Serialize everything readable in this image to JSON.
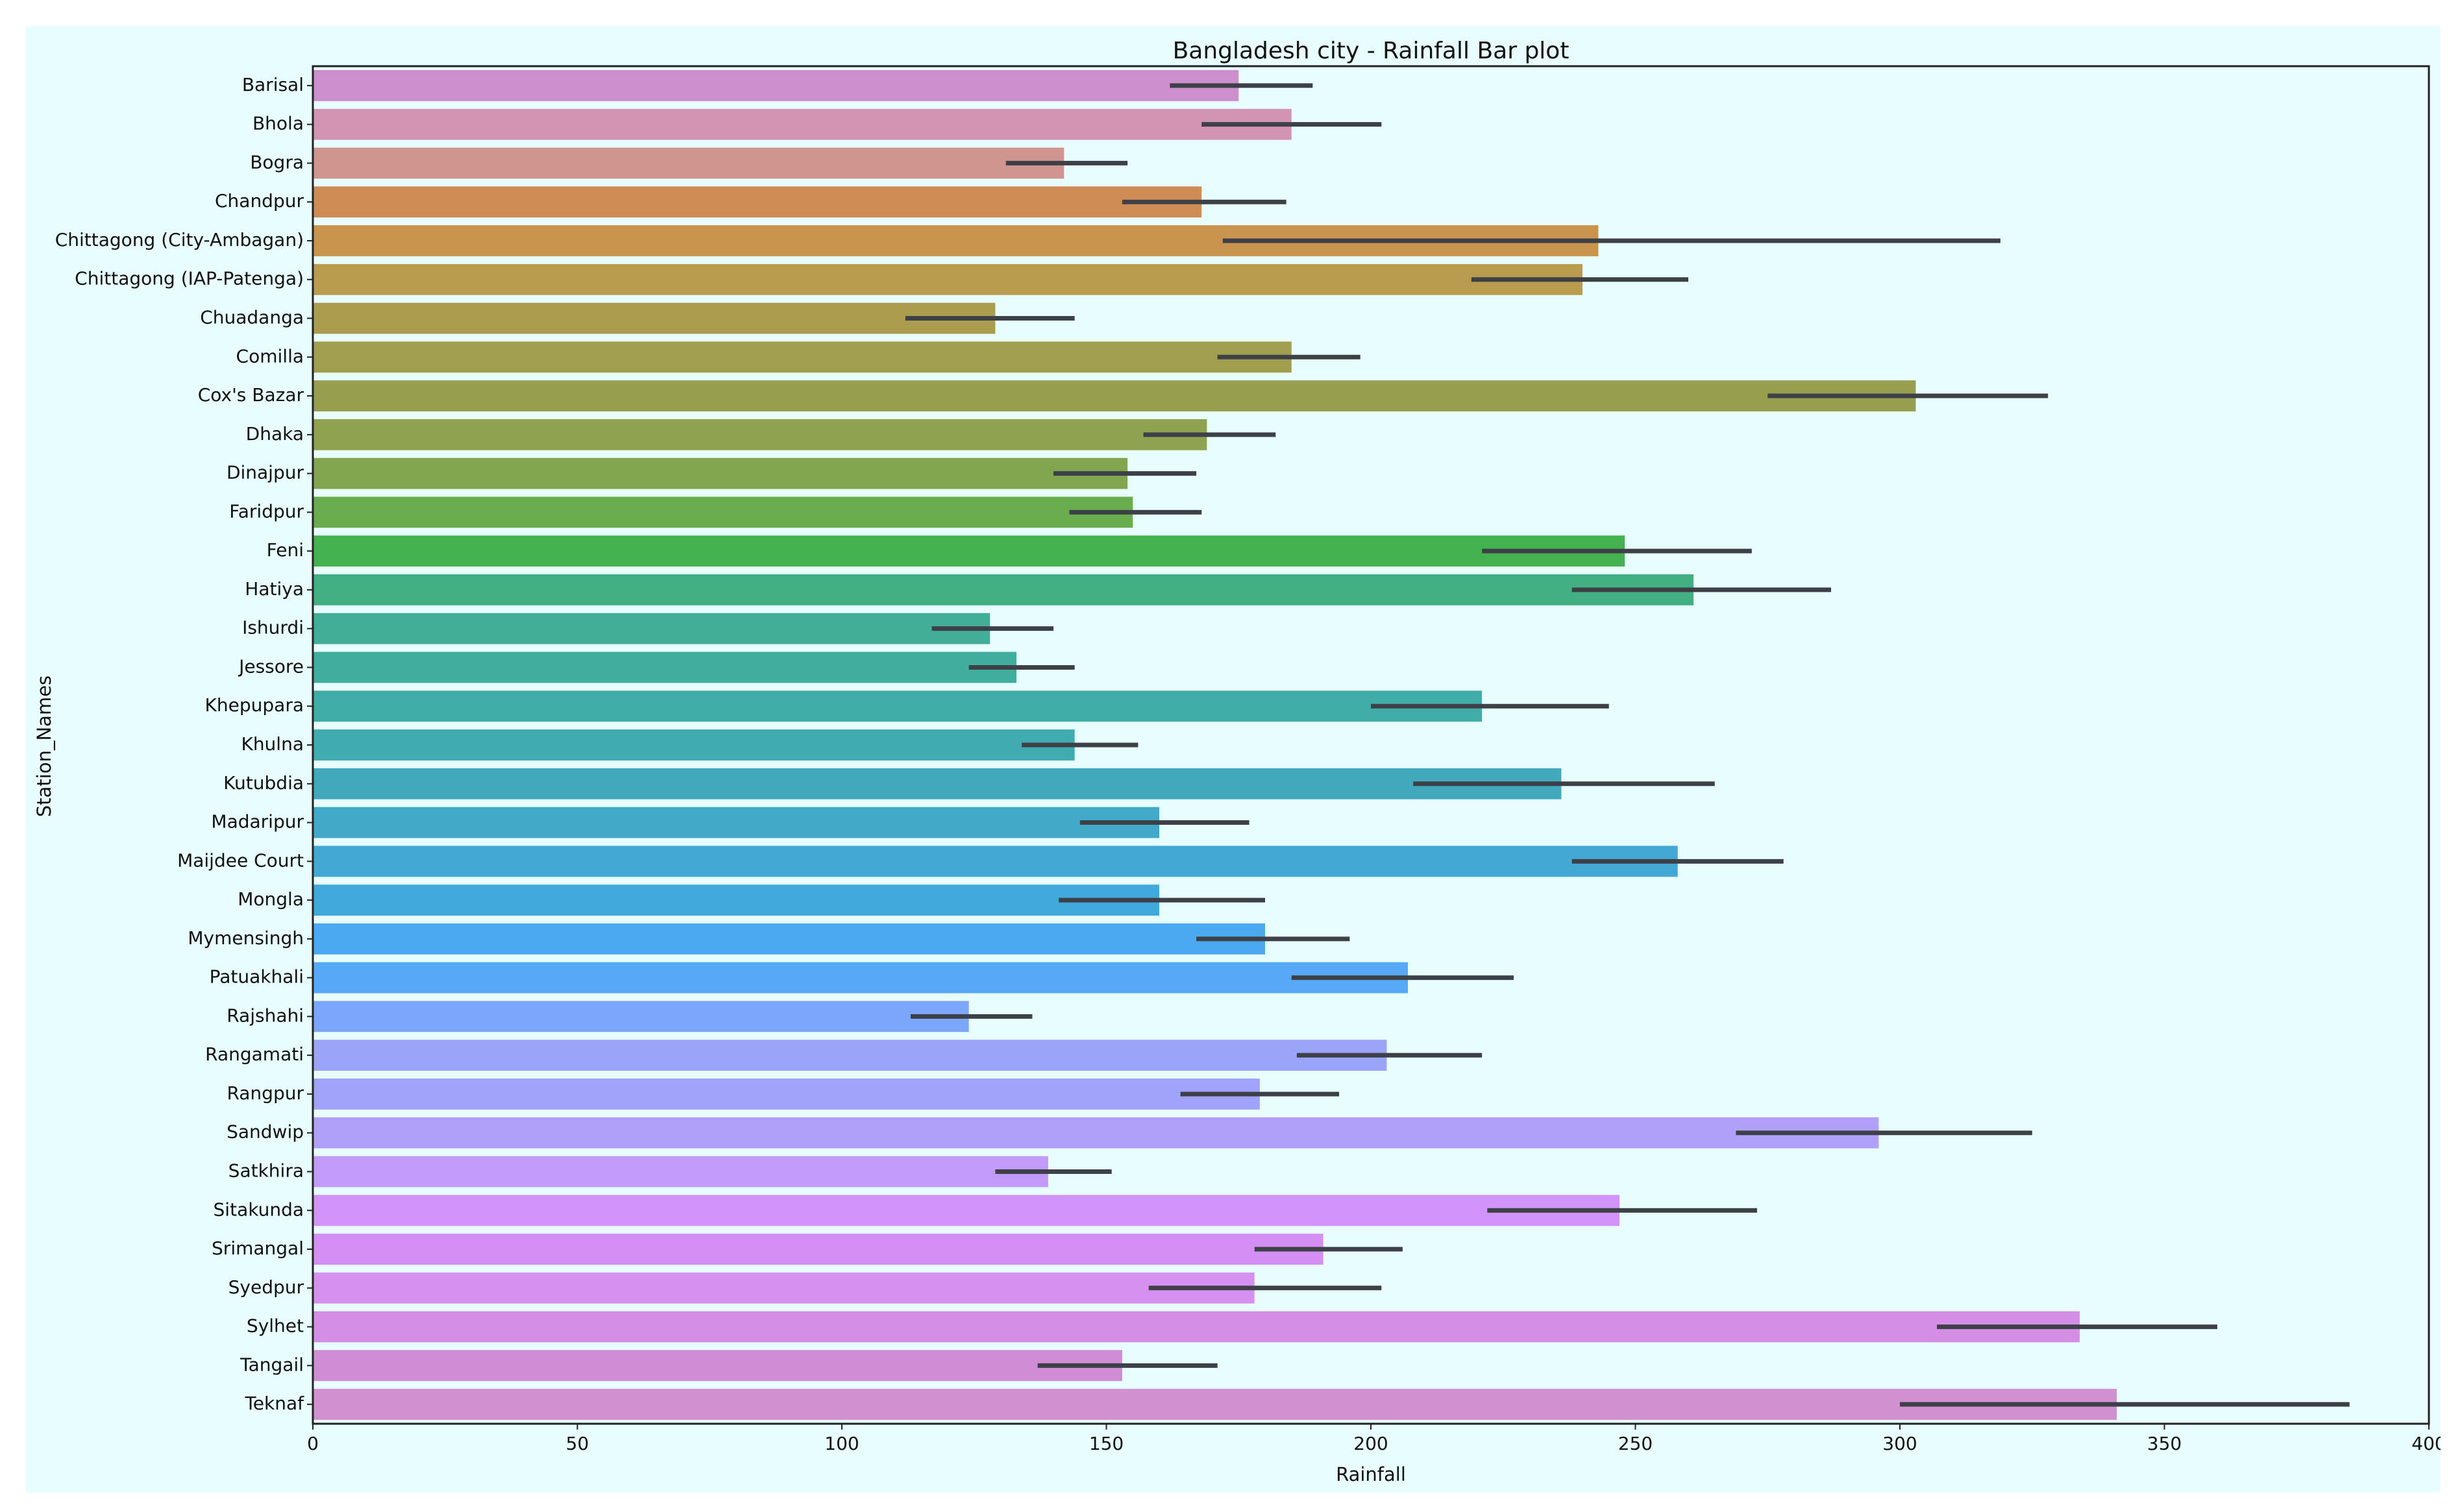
{
  "chart_data": {
    "type": "bar",
    "orientation": "horizontal",
    "title": "Bangladesh city - Rainfall Bar plot",
    "xlabel": "Rainfall",
    "ylabel": "Station_Names",
    "xlim": [
      0,
      400
    ],
    "xticks": [
      0,
      50,
      100,
      150,
      200,
      250,
      300,
      350,
      400
    ],
    "grid": false,
    "categories": [
      "Barisal",
      "Bhola",
      "Bogra",
      "Chandpur",
      "Chittagong (City-Ambagan)",
      "Chittagong (IAP-Patenga)",
      "Chuadanga",
      "Comilla",
      "Cox's Bazar",
      "Dhaka",
      "Dinajpur",
      "Faridpur",
      "Feni",
      "Hatiya",
      "Ishurdi",
      "Jessore",
      "Khepupara",
      "Khulna",
      "Kutubdia",
      "Madaripur",
      "Maijdee Court",
      "Mongla",
      "Mymensingh",
      "Patuakhali",
      "Rajshahi",
      "Rangamati",
      "Rangpur",
      "Sandwip",
      "Satkhira",
      "Sitakunda",
      "Srimangal",
      "Syedpur",
      "Sylhet",
      "Tangail",
      "Teknaf"
    ],
    "values": [
      175,
      185,
      142,
      168,
      243,
      240,
      129,
      185,
      303,
      169,
      154,
      155,
      248,
      261,
      128,
      133,
      221,
      144,
      236,
      160,
      258,
      160,
      180,
      207,
      124,
      203,
      179,
      296,
      139,
      247,
      191,
      178,
      334,
      153,
      341
    ],
    "error_low": [
      162,
      168,
      131,
      153,
      172,
      219,
      112,
      171,
      275,
      157,
      140,
      143,
      221,
      238,
      117,
      124,
      200,
      134,
      208,
      145,
      238,
      141,
      167,
      185,
      113,
      186,
      164,
      269,
      129,
      222,
      178,
      158,
      307,
      137,
      300
    ],
    "error_high": [
      189,
      202,
      154,
      184,
      319,
      260,
      144,
      198,
      328,
      182,
      167,
      168,
      272,
      287,
      140,
      144,
      245,
      156,
      265,
      177,
      278,
      180,
      196,
      227,
      136,
      221,
      194,
      325,
      151,
      273,
      206,
      202,
      360,
      171,
      385
    ],
    "colors": [
      "#cd8ecd",
      "#d294b2",
      "#d0958f",
      "#cf8d55",
      "#c9944e",
      "#ba9c4e",
      "#aa9e4e",
      "#a19f4e",
      "#979f4f",
      "#8ea24f",
      "#82a54f",
      "#6aad4f",
      "#44b34f",
      "#43b084",
      "#42ae97",
      "#40ad9e",
      "#40ada8",
      "#40acb2",
      "#41a9bb",
      "#42aac8",
      "#43a9d4",
      "#42a9dd",
      "#4aa9f0",
      "#58a8f8",
      "#7ca6fa",
      "#9aa5fa",
      "#a1a3fa",
      "#b1a0fa",
      "#c29bfa",
      "#d294f8",
      "#d58ff4",
      "#d690f0",
      "#d48ee3",
      "#d08dd6",
      "#d190cf"
    ],
    "error_color": "#3d4147"
  }
}
